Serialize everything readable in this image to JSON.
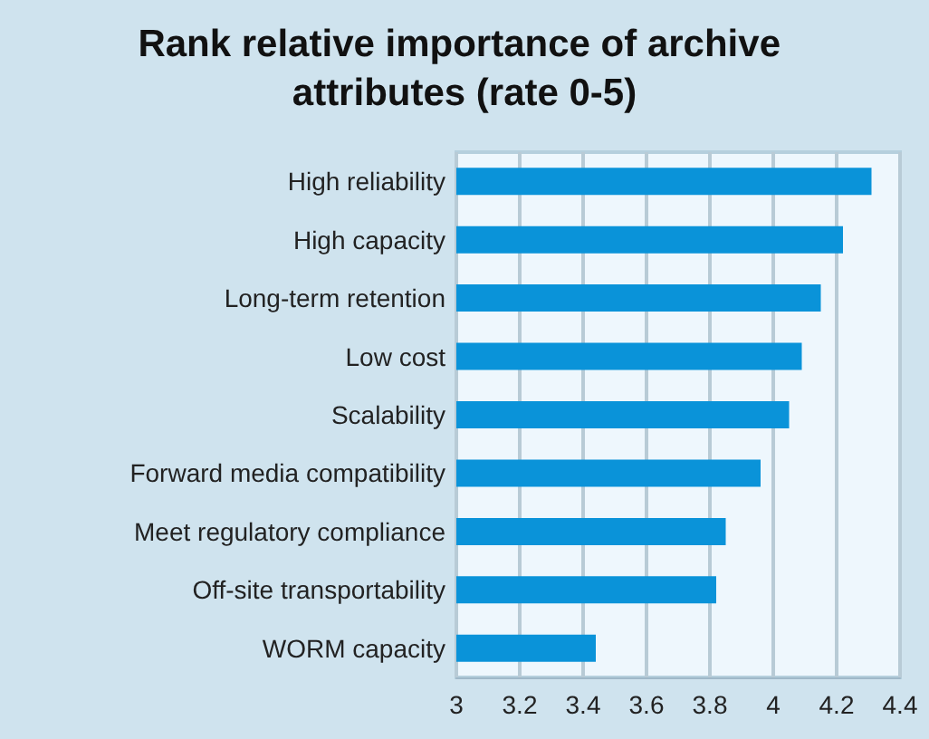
{
  "chart_data": {
    "type": "bar",
    "orientation": "horizontal",
    "title": "Rank relative importance of archive attributes (rate 0-5)",
    "categories": [
      "High reliability",
      "High capacity",
      "Long-term retention",
      "Low cost",
      "Scalability",
      "Forward media compatibility",
      "Meet regulatory compliance",
      "Off-site transportability",
      "WORM capacity"
    ],
    "values": [
      4.31,
      4.22,
      4.15,
      4.09,
      4.05,
      3.96,
      3.85,
      3.82,
      3.44
    ],
    "color": "#0a93d9",
    "xlim": [
      3,
      4.4
    ],
    "xticks": [
      3,
      3.2,
      3.4,
      3.6,
      3.8,
      4,
      4.2,
      4.4
    ],
    "grid": "x"
  }
}
